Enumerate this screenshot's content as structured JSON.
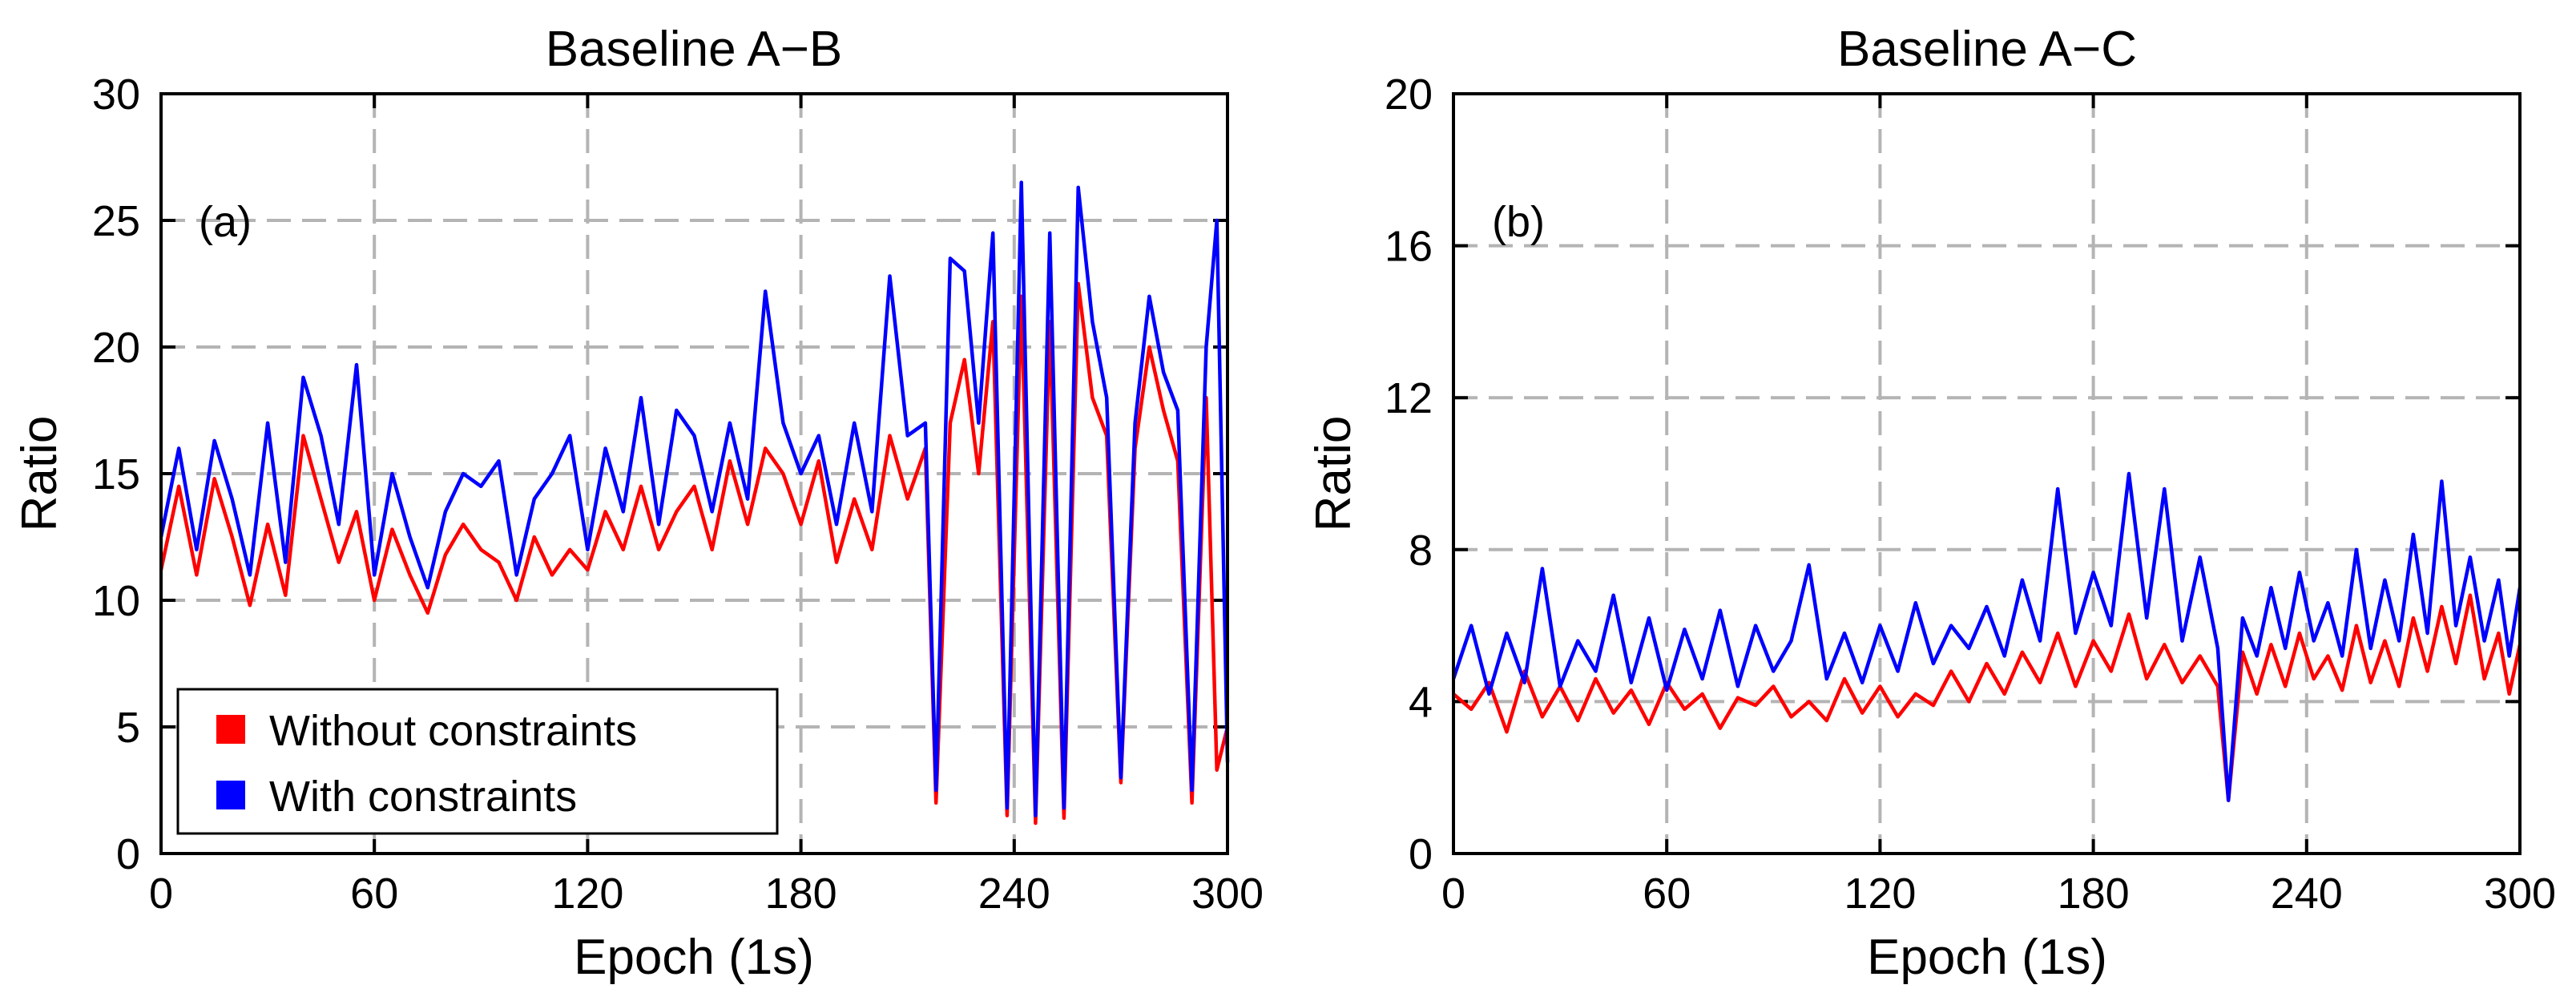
{
  "chart_data": [
    {
      "type": "line",
      "title": "Baseline A−B",
      "panel_label": "(a)",
      "xlabel": "Epoch (1s)",
      "ylabel": "Ratio",
      "xlim": [
        0,
        300
      ],
      "ylim": [
        0,
        30
      ],
      "xticks": [
        0,
        60,
        120,
        180,
        240,
        300
      ],
      "yticks": [
        0,
        5,
        10,
        15,
        20,
        25,
        30
      ],
      "grid": true,
      "legend_placement": "bottom-left",
      "series": [
        {
          "name": "Without constraints",
          "color": "#ff0000",
          "x": [
            0,
            5,
            10,
            15,
            20,
            25,
            30,
            35,
            40,
            45,
            50,
            55,
            60,
            65,
            70,
            75,
            80,
            85,
            90,
            95,
            100,
            105,
            110,
            115,
            120,
            125,
            130,
            135,
            140,
            145,
            150,
            155,
            160,
            165,
            170,
            175,
            180,
            185,
            190,
            195,
            200,
            205,
            210,
            215,
            218,
            222,
            226,
            230,
            234,
            238,
            242,
            246,
            250,
            254,
            258,
            262,
            266,
            270,
            274,
            278,
            282,
            286,
            290,
            294,
            297,
            300
          ],
          "values": [
            11.2,
            14.5,
            11.0,
            14.8,
            12.5,
            9.8,
            13.0,
            10.2,
            16.5,
            14.0,
            11.5,
            13.5,
            10.0,
            12.8,
            11.0,
            9.5,
            11.8,
            13.0,
            12.0,
            11.5,
            10.0,
            12.5,
            11.0,
            12.0,
            11.2,
            13.5,
            12.0,
            14.5,
            12.0,
            13.5,
            14.5,
            12.0,
            15.5,
            13.0,
            16.0,
            15.0,
            13.0,
            15.5,
            11.5,
            14.0,
            12.0,
            16.5,
            14.0,
            16.0,
            2.0,
            17.0,
            19.5,
            15.0,
            21.0,
            1.5,
            22.0,
            1.2,
            21.0,
            1.4,
            22.5,
            18.0,
            16.5,
            2.8,
            16.0,
            20.0,
            17.5,
            15.5,
            2.0,
            18.0,
            3.3,
            5.0
          ]
        },
        {
          "name": "With constraints",
          "color": "#0000ff",
          "x": [
            0,
            5,
            10,
            15,
            20,
            25,
            30,
            35,
            40,
            45,
            50,
            55,
            60,
            65,
            70,
            75,
            80,
            85,
            90,
            95,
            100,
            105,
            110,
            115,
            120,
            125,
            130,
            135,
            140,
            145,
            150,
            155,
            160,
            165,
            170,
            175,
            180,
            185,
            190,
            195,
            200,
            205,
            210,
            215,
            218,
            222,
            226,
            230,
            234,
            238,
            242,
            246,
            250,
            254,
            258,
            262,
            266,
            270,
            274,
            278,
            282,
            286,
            290,
            294,
            297,
            300
          ],
          "values": [
            12.5,
            16.0,
            12.0,
            16.3,
            14.0,
            11.0,
            17.0,
            11.5,
            18.8,
            16.5,
            13.0,
            19.3,
            11.0,
            15.0,
            12.5,
            10.5,
            13.5,
            15.0,
            14.5,
            15.5,
            11.0,
            14.0,
            15.0,
            16.5,
            12.0,
            16.0,
            13.5,
            18.0,
            13.0,
            17.5,
            16.5,
            13.5,
            17.0,
            14.0,
            22.2,
            17.0,
            15.0,
            16.5,
            13.0,
            17.0,
            13.5,
            22.8,
            16.5,
            17.0,
            2.5,
            23.5,
            23.0,
            17.0,
            24.5,
            1.8,
            26.5,
            1.5,
            24.5,
            1.8,
            26.3,
            21.0,
            18.0,
            3.0,
            17.0,
            22.0,
            19.0,
            17.5,
            2.5,
            20.0,
            25.0,
            3.6
          ]
        }
      ]
    },
    {
      "type": "line",
      "title": "Baseline A−C",
      "panel_label": "(b)",
      "xlabel": "Epoch (1s)",
      "ylabel": "Ratio",
      "xlim": [
        0,
        300
      ],
      "ylim": [
        0,
        20
      ],
      "xticks": [
        0,
        60,
        120,
        180,
        240,
        300
      ],
      "yticks": [
        0,
        4,
        8,
        12,
        16,
        20
      ],
      "grid": true,
      "series": [
        {
          "name": "Without constraints",
          "color": "#ff0000",
          "x": [
            0,
            5,
            10,
            15,
            20,
            25,
            30,
            35,
            40,
            45,
            50,
            55,
            60,
            65,
            70,
            75,
            80,
            85,
            90,
            95,
            100,
            105,
            110,
            115,
            120,
            125,
            130,
            135,
            140,
            145,
            150,
            155,
            160,
            165,
            170,
            175,
            180,
            185,
            190,
            195,
            200,
            205,
            210,
            215,
            218,
            222,
            226,
            230,
            234,
            238,
            242,
            246,
            250,
            254,
            258,
            262,
            266,
            270,
            274,
            278,
            282,
            286,
            290,
            294,
            297,
            300
          ],
          "values": [
            4.2,
            3.8,
            4.5,
            3.2,
            4.8,
            3.6,
            4.4,
            3.5,
            4.6,
            3.7,
            4.3,
            3.4,
            4.5,
            3.8,
            4.2,
            3.3,
            4.1,
            3.9,
            4.4,
            3.6,
            4.0,
            3.5,
            4.6,
            3.7,
            4.4,
            3.6,
            4.2,
            3.9,
            4.8,
            4.0,
            5.0,
            4.2,
            5.3,
            4.5,
            5.8,
            4.4,
            5.6,
            4.8,
            6.3,
            4.6,
            5.5,
            4.5,
            5.2,
            4.4,
            1.4,
            5.3,
            4.2,
            5.5,
            4.4,
            5.8,
            4.6,
            5.2,
            4.3,
            6.0,
            4.5,
            5.6,
            4.4,
            6.2,
            4.8,
            6.5,
            5.0,
            6.8,
            4.6,
            5.8,
            4.2,
            5.5
          ]
        },
        {
          "name": "With constraints",
          "color": "#0000ff",
          "x": [
            0,
            5,
            10,
            15,
            20,
            25,
            30,
            35,
            40,
            45,
            50,
            55,
            60,
            65,
            70,
            75,
            80,
            85,
            90,
            95,
            100,
            105,
            110,
            115,
            120,
            125,
            130,
            135,
            140,
            145,
            150,
            155,
            160,
            165,
            170,
            175,
            180,
            185,
            190,
            195,
            200,
            205,
            210,
            215,
            218,
            222,
            226,
            230,
            234,
            238,
            242,
            246,
            250,
            254,
            258,
            262,
            266,
            270,
            274,
            278,
            282,
            286,
            290,
            294,
            297,
            300
          ],
          "values": [
            4.6,
            6.0,
            4.2,
            5.8,
            4.5,
            7.5,
            4.4,
            5.6,
            4.8,
            6.8,
            4.5,
            6.2,
            4.3,
            5.9,
            4.6,
            6.4,
            4.4,
            6.0,
            4.8,
            5.6,
            7.6,
            4.6,
            5.8,
            4.5,
            6.0,
            4.8,
            6.6,
            5.0,
            6.0,
            5.4,
            6.5,
            5.2,
            7.2,
            5.6,
            9.6,
            5.8,
            7.4,
            6.0,
            10.0,
            6.2,
            9.6,
            5.6,
            7.8,
            5.4,
            1.4,
            6.2,
            5.2,
            7.0,
            5.4,
            7.4,
            5.6,
            6.6,
            5.2,
            8.0,
            5.4,
            7.2,
            5.6,
            8.4,
            5.8,
            9.8,
            6.0,
            7.8,
            5.6,
            7.2,
            5.2,
            7.0
          ]
        }
      ]
    }
  ]
}
